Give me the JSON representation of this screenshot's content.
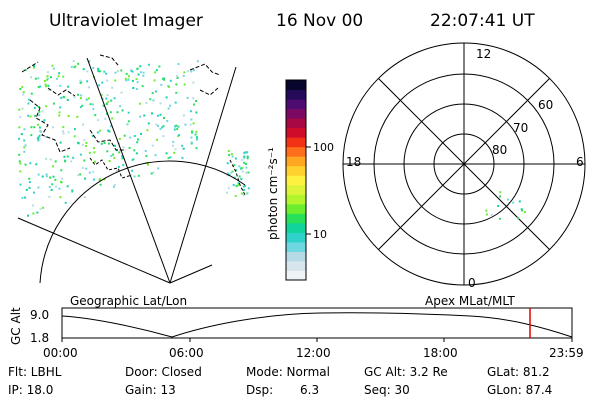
{
  "header": {
    "instrument": "Ultraviolet Imager",
    "date": "16 Nov 00",
    "time": "22:07:41 UT"
  },
  "colorbar": {
    "label": "photon cm⁻²s⁻¹",
    "tick_100": "100",
    "tick_10": "10",
    "scale": "log",
    "colors": [
      "#eef3f6",
      "#d7e6ec",
      "#b6dbe7",
      "#6fd7e1",
      "#2ed2c8",
      "#10d49a",
      "#29e05a",
      "#6cee2f",
      "#b2f52c",
      "#ddf33a",
      "#fff13f",
      "#ffd12e",
      "#ffa622",
      "#ff6e1a",
      "#f23214",
      "#cf0c2a",
      "#a80844",
      "#7c0a62",
      "#4e0c70",
      "#240a58",
      "#08062c"
    ]
  },
  "panels": {
    "left_caption": "Geographic Lat/Lon",
    "right_caption": "Apex MLat/MLT"
  },
  "polar": {
    "mlt_top": "12",
    "mlt_left": "18",
    "mlt_right": "6",
    "mlt_bottom": "0",
    "lat_60": "60",
    "lat_70": "70",
    "lat_80": "80"
  },
  "altitude_plot": {
    "axis_label": "GC Alt",
    "y_top": "9.0",
    "y_bottom": "1.8",
    "x_ticks": [
      "00:00",
      "06:00",
      "12:00",
      "18:00",
      "23:59"
    ],
    "marker_color": "#e00000"
  },
  "footer": {
    "flt": "Flt: LBHL",
    "ip": "IP: 18.0",
    "door": "Door: Closed",
    "gain": "Gain: 13",
    "mode": "Mode: Normal",
    "dsp_label": "Dsp:",
    "dsp_value": "6.3",
    "gcalt": "GC Alt: 3.2 Re",
    "seq": "Seq: 30",
    "glat": "GLat: 81.2",
    "glon": "GLon: 87.4"
  }
}
